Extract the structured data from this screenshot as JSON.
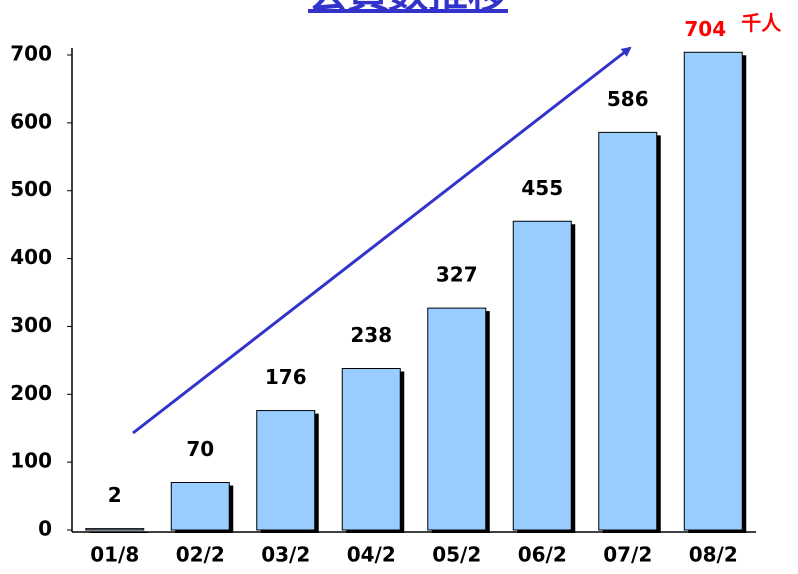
{
  "chart_data": {
    "type": "bar",
    "title": "会員数推移",
    "unit": "千人",
    "categories": [
      "01/8",
      "02/2",
      "03/2",
      "04/2",
      "05/2",
      "06/2",
      "07/2",
      "08/2"
    ],
    "values": [
      2,
      70,
      176,
      238,
      327,
      455,
      586,
      704
    ],
    "color": "#99ccff",
    "highlight_color": "#ff0000",
    "ylim": [
      0,
      700
    ],
    "yticks": [
      0,
      100,
      200,
      300,
      400,
      500,
      600,
      700
    ],
    "grid": false
  }
}
